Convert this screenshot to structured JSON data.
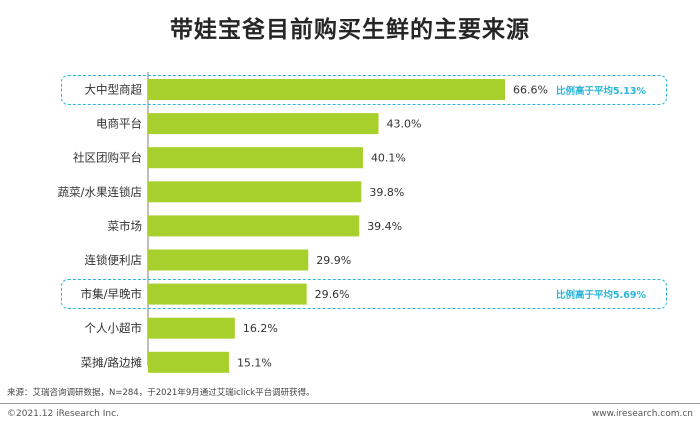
{
  "chart_data": {
    "type": "bar",
    "orientation": "horizontal",
    "title": "带娃宝爸目前购买生鲜的主要来源",
    "categories": [
      "大中型商超",
      "电商平台",
      "社区团购平台",
      "蔬菜/水果连锁店",
      "菜市场",
      "连锁便利店",
      "市集/早晚市",
      "个人小超市",
      "菜摊/路边摊"
    ],
    "values": [
      66.6,
      43.0,
      40.1,
      39.8,
      39.4,
      29.9,
      29.6,
      16.2,
      15.1
    ],
    "value_labels": [
      "66.6%",
      "43.0%",
      "40.1%",
      "39.8%",
      "39.4%",
      "29.9%",
      "29.6%",
      "16.2%",
      "15.1%"
    ],
    "xlim": [
      0,
      100
    ],
    "bar_color": "#a8d02d",
    "highlight_color": "#29b6d8",
    "grid": false,
    "annotations": [
      {
        "category_index": 0,
        "text": "比例高于平均5.13%"
      },
      {
        "category_index": 6,
        "text": "比例高于平均5.69%"
      }
    ]
  },
  "source_note": "来源：艾瑞咨询调研数据，N=284，于2021年9月通过艾瑞iclick平台调研获得。",
  "footer": {
    "copyright": "©2021.12 iResearch Inc.",
    "website": "www.iresearch.com.cn"
  }
}
